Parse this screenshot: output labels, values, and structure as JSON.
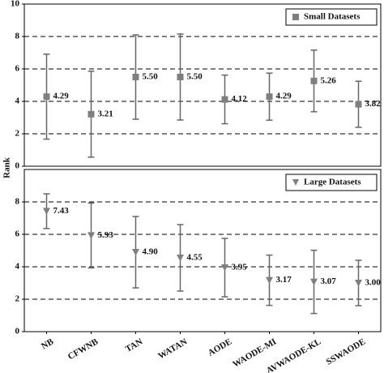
{
  "chart_data": [
    {
      "type": "errorbar",
      "ylim": [
        0,
        10
      ],
      "yticks": [
        0,
        2,
        4,
        6,
        8,
        10
      ],
      "grid": true,
      "legend": "upper right",
      "series": [
        {
          "name": "Small Datasets",
          "color": "#7f7f7f",
          "marker": "square",
          "values": [
            4.29,
            3.21,
            5.5,
            5.5,
            4.12,
            4.29,
            5.26,
            3.82
          ],
          "value_labels": [
            "4.29",
            "3.21",
            "5.50",
            "5.50",
            "4.12",
            "4.29",
            "5.26",
            "3.82"
          ],
          "errors": [
            2.62,
            2.65,
            2.6,
            2.65,
            1.5,
            1.45,
            1.9,
            1.42
          ]
        }
      ]
    },
    {
      "type": "errorbar",
      "ylabel": "Rank",
      "ylim": [
        0,
        10
      ],
      "yticks": [
        0,
        2,
        4,
        6,
        8
      ],
      "grid": true,
      "legend": "upper right",
      "categories": [
        "NB",
        "CFWNB",
        "TAN",
        "WATAN",
        "AODE",
        "WAODE-MI",
        "AVWAODE-KL",
        "SSWAODE"
      ],
      "series": [
        {
          "name": "Large Datasets",
          "color": "#7f7f7f",
          "marker": "triangle-down",
          "values": [
            7.43,
            5.93,
            4.9,
            4.55,
            3.95,
            3.17,
            3.07,
            3.0
          ],
          "value_labels": [
            "7.43",
            "5.93",
            "4.90",
            "4.55",
            "3.95",
            "3.17",
            "3.07",
            "3.00"
          ],
          "errors": [
            1.07,
            2.0,
            2.2,
            2.05,
            1.8,
            1.55,
            1.95,
            1.4
          ]
        }
      ]
    }
  ]
}
